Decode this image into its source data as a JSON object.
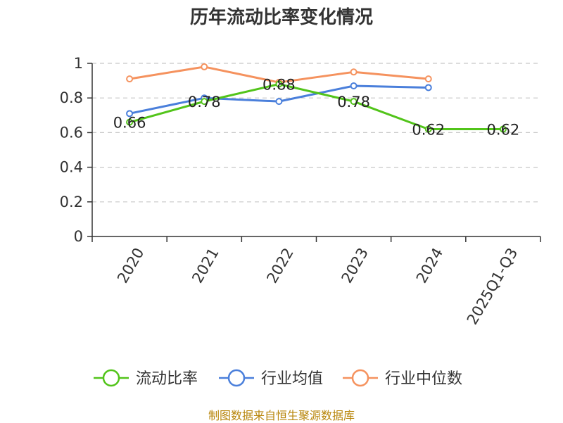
{
  "chart_data": {
    "type": "line",
    "title": "历年流动比率变化情况",
    "categories": [
      "2020",
      "2021",
      "2022",
      "2023",
      "2024",
      "2025Q1-Q3"
    ],
    "ylim": [
      0,
      1
    ],
    "yticks": [
      0,
      0.2,
      0.4,
      0.6,
      0.8,
      1
    ],
    "ytick_labels": [
      "0",
      "0.2",
      "0.4",
      "0.6",
      "0.8",
      "1"
    ],
    "grid": true,
    "legend_position": "bottom",
    "series": [
      {
        "name": "流动比率",
        "color": "#52c41a",
        "values": [
          0.66,
          0.78,
          0.88,
          0.78,
          0.62,
          0.62
        ],
        "labels": [
          "0.66",
          "0.78",
          "0.88",
          "0.78",
          "0.62",
          "0.62"
        ]
      },
      {
        "name": "行业均值",
        "color": "#4a7fdb",
        "values": [
          0.71,
          0.8,
          0.78,
          0.87,
          0.86,
          null
        ]
      },
      {
        "name": "行业中位数",
        "color": "#f5925e",
        "values": [
          0.91,
          0.98,
          0.89,
          0.95,
          0.91,
          null
        ]
      }
    ]
  },
  "footer": {
    "source": "制图数据来自恒生聚源数据库"
  }
}
